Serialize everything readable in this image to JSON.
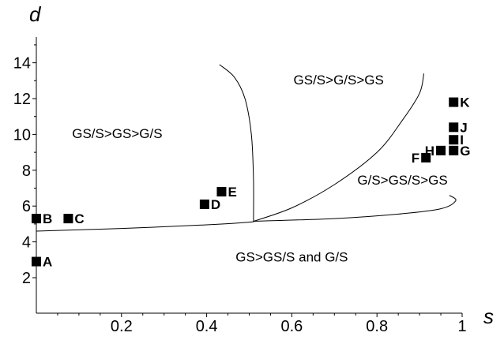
{
  "chart_data": {
    "type": "scatter",
    "title": "",
    "xlabel": "s",
    "ylabel": "d",
    "xlim": [
      0,
      1
    ],
    "ylim": [
      1,
      15
    ],
    "x_ticks": [
      0.2,
      0.4,
      0.6,
      0.8,
      1
    ],
    "x_tick_labels": [
      "0.2",
      "0.4",
      "0.6",
      "0.8",
      "1"
    ],
    "y_ticks": [
      2,
      4,
      6,
      8,
      10,
      12,
      14
    ],
    "y_tick_labels": [
      "2",
      "4",
      "6",
      "8",
      "10",
      "12",
      "14"
    ],
    "grid": false,
    "points": [
      {
        "label": "A",
        "x": 0.0,
        "y": 2.9
      },
      {
        "label": "B",
        "x": 0.0,
        "y": 5.3
      },
      {
        "label": "C",
        "x": 0.075,
        "y": 5.3
      },
      {
        "label": "D",
        "x": 0.395,
        "y": 6.1
      },
      {
        "label": "E",
        "x": 0.435,
        "y": 6.8
      },
      {
        "label": "F",
        "x": 0.915,
        "y": 8.7
      },
      {
        "label": "G",
        "x": 0.98,
        "y": 9.1
      },
      {
        "label": "H",
        "x": 0.95,
        "y": 9.1
      },
      {
        "label": "I",
        "x": 0.98,
        "y": 9.7
      },
      {
        "label": "J",
        "x": 0.98,
        "y": 10.4
      },
      {
        "label": "K",
        "x": 0.98,
        "y": 11.8
      }
    ],
    "boundaries": [
      {
        "x": [
          0.0,
          0.2,
          0.4,
          0.5,
          0.51
        ],
        "y": [
          4.6,
          4.75,
          4.95,
          5.1,
          5.15
        ]
      },
      {
        "x": [
          0.51,
          0.51,
          0.505,
          0.49,
          0.465,
          0.43
        ],
        "y": [
          5.15,
          7.5,
          10.0,
          12.0,
          13.2,
          13.9
        ]
      },
      {
        "x": [
          0.51,
          0.6,
          0.7,
          0.8,
          0.86,
          0.9,
          0.91
        ],
        "y": [
          5.15,
          5.9,
          7.2,
          9.0,
          10.8,
          12.3,
          13.4
        ]
      },
      {
        "x": [
          0.51,
          0.7,
          0.85,
          0.95,
          0.985,
          0.97
        ],
        "y": [
          5.15,
          5.3,
          5.55,
          5.85,
          6.3,
          6.6
        ]
      }
    ],
    "annotations": [
      {
        "text": "GS/S>GS>G/S",
        "x": 0.19,
        "y": 9.8
      },
      {
        "text": "GS/S>G/S>GS",
        "x": 0.71,
        "y": 12.8
      },
      {
        "text": "G/S>GS/S>GS",
        "x": 0.86,
        "y": 7.2
      },
      {
        "text": "GS>GS/S and G/S",
        "x": 0.6,
        "y": 2.9
      }
    ]
  }
}
